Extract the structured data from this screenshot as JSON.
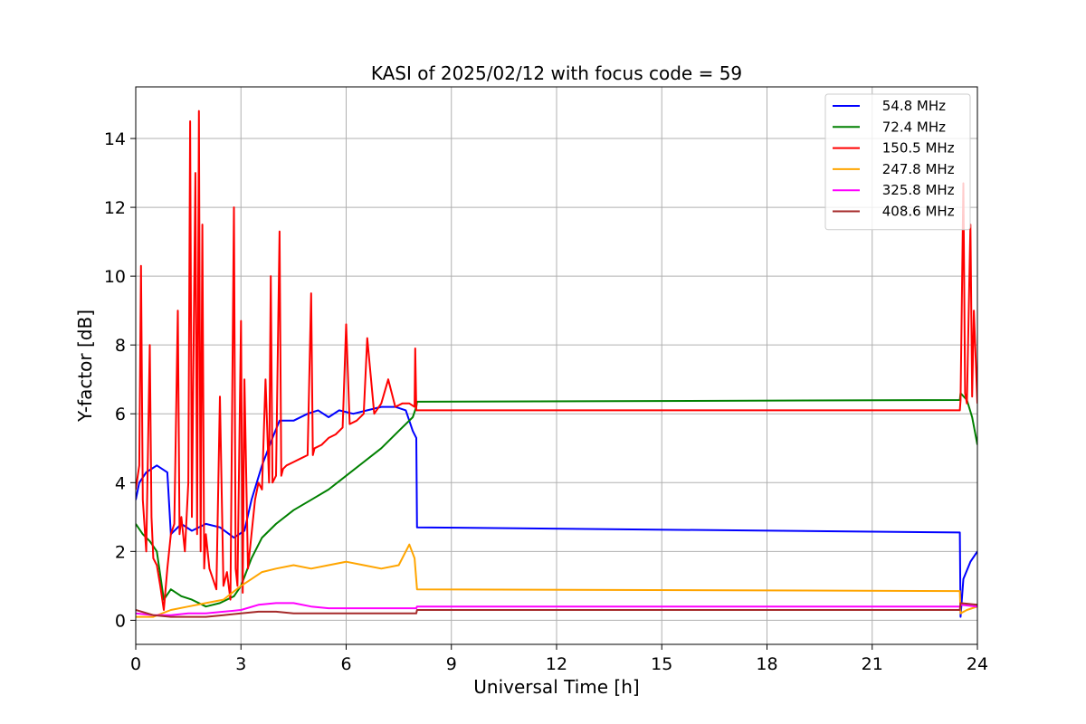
{
  "chart_data": {
    "type": "line",
    "title": "KASI of 2025/02/12 with focus code = 59",
    "xlabel": "Universal Time [h]",
    "ylabel": "Y-factor [dB]",
    "xlim": [
      0,
      24
    ],
    "ylim": [
      -0.7,
      15.5
    ],
    "xticks": [
      0,
      3,
      6,
      9,
      12,
      15,
      18,
      21,
      24
    ],
    "yticks": [
      0,
      2,
      4,
      6,
      8,
      10,
      12,
      14
    ],
    "grid": true,
    "legend_position": "top-right",
    "series": [
      {
        "name": " 54.8 MHz",
        "color": "#0000ff",
        "x": [
          0,
          0.1,
          0.3,
          0.6,
          0.9,
          1.0,
          1.3,
          1.6,
          2.0,
          2.4,
          2.8,
          3.1,
          3.3,
          3.6,
          3.9,
          4.1,
          4.5,
          4.9,
          5.2,
          5.5,
          5.8,
          6.2,
          6.6,
          7.0,
          7.4,
          7.7,
          7.9,
          8.0,
          8.02,
          23.5,
          23.52,
          23.6,
          23.8,
          24.0
        ],
        "y": [
          3.5,
          4.0,
          4.3,
          4.5,
          4.3,
          2.5,
          2.8,
          2.6,
          2.8,
          2.7,
          2.4,
          2.6,
          3.5,
          4.5,
          5.3,
          5.8,
          5.8,
          6.0,
          6.1,
          5.9,
          6.1,
          6.0,
          6.1,
          6.2,
          6.2,
          6.1,
          5.5,
          5.3,
          2.7,
          2.55,
          0.1,
          1.2,
          1.7,
          2.0
        ]
      },
      {
        "name": " 72.4 MHz",
        "color": "#008000",
        "x": [
          0,
          0.2,
          0.4,
          0.6,
          0.8,
          1.0,
          1.3,
          1.6,
          2.0,
          2.4,
          2.8,
          3.0,
          3.3,
          3.6,
          4.0,
          4.5,
          5.0,
          5.5,
          6.0,
          6.5,
          7.0,
          7.5,
          7.9,
          8.0,
          8.02,
          23.5,
          23.52,
          23.7,
          23.85,
          24.0
        ],
        "y": [
          2.8,
          2.5,
          2.3,
          2.0,
          0.6,
          0.9,
          0.7,
          0.6,
          0.4,
          0.5,
          0.7,
          1.0,
          1.8,
          2.4,
          2.8,
          3.2,
          3.5,
          3.8,
          4.2,
          4.6,
          5.0,
          5.5,
          5.9,
          6.2,
          6.35,
          6.4,
          6.6,
          6.4,
          5.9,
          5.1
        ]
      },
      {
        "name": " 150.5 MHz",
        "color": "#ff0000",
        "x": [
          0,
          0.1,
          0.15,
          0.2,
          0.3,
          0.4,
          0.45,
          0.5,
          0.6,
          0.7,
          0.8,
          0.9,
          1.0,
          1.1,
          1.2,
          1.25,
          1.3,
          1.4,
          1.5,
          1.55,
          1.6,
          1.7,
          1.75,
          1.8,
          1.85,
          1.9,
          1.95,
          2.0,
          2.1,
          2.2,
          2.3,
          2.4,
          2.5,
          2.6,
          2.7,
          2.8,
          2.85,
          2.9,
          3.0,
          3.05,
          3.1,
          3.2,
          3.3,
          3.4,
          3.5,
          3.6,
          3.7,
          3.8,
          3.85,
          3.9,
          4.0,
          4.1,
          4.15,
          4.2,
          4.3,
          4.5,
          4.7,
          4.9,
          5.0,
          5.05,
          5.1,
          5.3,
          5.5,
          5.7,
          5.9,
          6.0,
          6.1,
          6.3,
          6.5,
          6.6,
          6.8,
          7.0,
          7.2,
          7.4,
          7.6,
          7.8,
          7.95,
          7.97,
          8.0,
          8.02,
          23.5,
          23.52,
          23.6,
          23.65,
          23.7,
          23.8,
          23.85,
          23.9,
          24.0
        ],
        "y": [
          3.8,
          4.5,
          10.3,
          3.5,
          2.0,
          8.0,
          3.0,
          1.8,
          1.6,
          1.0,
          0.3,
          1.5,
          2.5,
          2.8,
          9.0,
          2.5,
          3.0,
          2.0,
          4.0,
          14.5,
          3.0,
          13.0,
          2.5,
          14.8,
          2.0,
          11.5,
          1.5,
          2.5,
          1.5,
          1.2,
          0.9,
          6.5,
          1.0,
          1.4,
          0.6,
          12.0,
          1.5,
          1.0,
          8.7,
          0.8,
          7.0,
          1.5,
          2.5,
          3.5,
          4.0,
          3.8,
          7.0,
          4.0,
          10.0,
          4.0,
          4.2,
          11.3,
          4.2,
          4.4,
          4.5,
          4.6,
          4.7,
          4.8,
          9.5,
          4.8,
          5.0,
          5.1,
          5.3,
          5.4,
          5.6,
          8.6,
          5.7,
          5.8,
          6.0,
          8.2,
          6.0,
          6.3,
          7.0,
          6.2,
          6.3,
          6.3,
          6.2,
          7.9,
          6.1,
          6.1,
          6.1,
          6.4,
          12.7,
          6.6,
          6.3,
          11.5,
          6.5,
          9.0,
          6.3
        ]
      },
      {
        "name": " 247.8 MHz",
        "color": "#ffa500",
        "x": [
          0,
          0.5,
          1.0,
          1.5,
          2.0,
          2.5,
          3.0,
          3.3,
          3.6,
          4.0,
          4.5,
          5.0,
          5.5,
          6.0,
          6.5,
          7.0,
          7.5,
          7.8,
          7.95,
          8.02,
          23.5,
          23.52,
          23.7,
          24.0
        ],
        "y": [
          0.1,
          0.1,
          0.3,
          0.4,
          0.5,
          0.6,
          1.0,
          1.2,
          1.4,
          1.5,
          1.6,
          1.5,
          1.6,
          1.7,
          1.6,
          1.5,
          1.6,
          2.2,
          1.8,
          0.9,
          0.85,
          0.2,
          0.3,
          0.4
        ]
      },
      {
        "name": " 325.8 MHz",
        "color": "#ff00ff",
        "x": [
          0,
          0.5,
          1.0,
          1.5,
          2.0,
          2.5,
          3.0,
          3.5,
          4.0,
          4.5,
          5.0,
          5.5,
          6.0,
          7.0,
          8.0,
          8.02,
          23.5,
          23.52,
          24.0
        ],
        "y": [
          0.2,
          0.15,
          0.15,
          0.2,
          0.2,
          0.25,
          0.3,
          0.45,
          0.5,
          0.5,
          0.4,
          0.35,
          0.35,
          0.35,
          0.35,
          0.4,
          0.4,
          0.45,
          0.4
        ]
      },
      {
        "name": " 408.6 MHz",
        "color": "#a52a2a",
        "x": [
          0,
          0.5,
          1.0,
          1.5,
          2.0,
          2.5,
          3.0,
          3.5,
          4.0,
          4.5,
          5.0,
          5.5,
          6.0,
          7.0,
          8.0,
          8.02,
          23.5,
          23.52,
          24.0
        ],
        "y": [
          0.3,
          0.15,
          0.1,
          0.1,
          0.1,
          0.15,
          0.2,
          0.25,
          0.25,
          0.2,
          0.2,
          0.2,
          0.2,
          0.2,
          0.2,
          0.3,
          0.3,
          0.5,
          0.45
        ]
      }
    ]
  }
}
